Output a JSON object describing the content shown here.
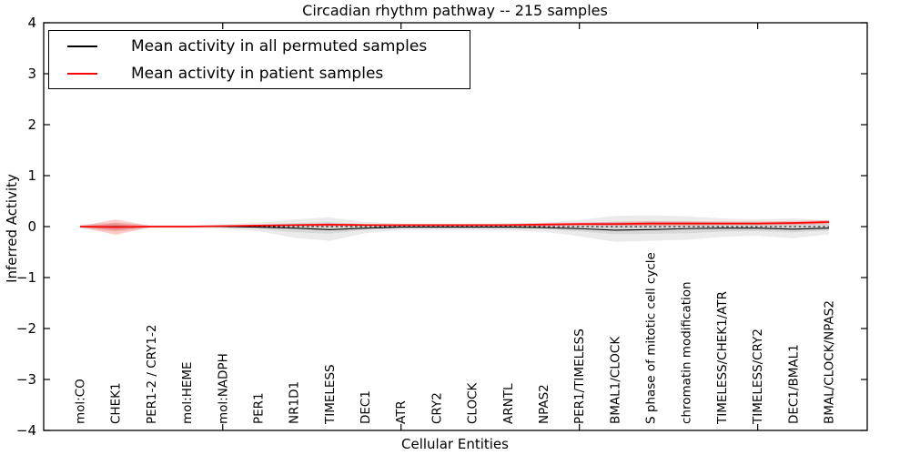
{
  "title": "Circadian rhythm pathway -- 215 samples",
  "axes": {
    "xlabel": "Cellular Entities",
    "ylabel": "Inferred Activity"
  },
  "legend": {
    "items": [
      {
        "label": "Mean activity in all permuted samples",
        "color": "#000000"
      },
      {
        "label": "Mean activity in patient samples",
        "color": "#ff0000"
      }
    ],
    "position": "upper left"
  },
  "chart_data": {
    "type": "line",
    "title": "Circadian rhythm pathway -- 215 samples",
    "xlabel": "Cellular Entities",
    "ylabel": "Inferred Activity",
    "ylim": [
      -4,
      4
    ],
    "yticks": [
      -4,
      -3,
      -2,
      -1,
      0,
      1,
      2,
      3,
      4
    ],
    "xtick_marks_at_indices": [
      4,
      9,
      14,
      19
    ],
    "grid": false,
    "legend_position": "upper left",
    "categories": [
      "mol:CO",
      "CHEK1",
      "PER1-2 / CRY1-2",
      "mol:HEME",
      "mol:NADPH",
      "PER1",
      "NR1D1",
      "TIMELESS",
      "DEC1",
      "ATR",
      "CRY2",
      "CLOCK",
      "ARNTL",
      "NPAS2",
      "PER1/TIMELESS",
      "BMAL1/CLOCK",
      "S phase of mitotic cell cycle",
      "chromatin modification",
      "TIMELESS/CHEK1/ATR",
      "TIMELESS/CRY2",
      "DEC1/BMAL1",
      "BMAL/CLOCK/NPAS2"
    ],
    "series": [
      {
        "name": "Mean activity in all permuted samples",
        "color": "#000000",
        "style": "solid",
        "values": [
          0,
          0,
          0,
          0,
          0,
          -0.01,
          -0.03,
          -0.06,
          -0.03,
          -0.01,
          -0.01,
          -0.01,
          -0.01,
          -0.02,
          -0.04,
          -0.07,
          -0.06,
          -0.04,
          -0.03,
          -0.03,
          -0.05,
          -0.03
        ]
      },
      {
        "name": "Mean activity in patient samples",
        "color": "#ff0000",
        "style": "solid",
        "values": [
          0,
          -0.01,
          0,
          0,
          0.01,
          0.02,
          0.03,
          0.04,
          0.03,
          0.03,
          0.03,
          0.03,
          0.03,
          0.04,
          0.05,
          0.05,
          0.06,
          0.06,
          0.06,
          0.06,
          0.07,
          0.09
        ]
      },
      {
        "name": "zero-reference",
        "color": "#000000",
        "style": "dotted",
        "values": [
          0,
          0,
          0,
          0,
          0,
          0,
          0,
          0,
          0,
          0,
          0,
          0,
          0,
          0,
          0,
          0,
          0,
          0,
          0,
          0,
          0,
          0
        ]
      }
    ],
    "bands": [
      {
        "name": "permuted-band-outer",
        "color": "rgba(0,0,0,0.08)",
        "upper": [
          0.04,
          0.08,
          0.03,
          0.03,
          0.04,
          0.08,
          0.14,
          0.18,
          0.09,
          0.06,
          0.06,
          0.06,
          0.07,
          0.08,
          0.13,
          0.21,
          0.22,
          0.2,
          0.16,
          0.14,
          0.16,
          0.12
        ],
        "lower": [
          -0.04,
          -0.1,
          -0.03,
          -0.03,
          -0.04,
          -0.09,
          -0.22,
          -0.28,
          -0.13,
          -0.07,
          -0.07,
          -0.07,
          -0.08,
          -0.1,
          -0.19,
          -0.3,
          -0.28,
          -0.26,
          -0.2,
          -0.18,
          -0.23,
          -0.15
        ]
      },
      {
        "name": "permuted-band-inner",
        "color": "rgba(0,0,0,0.08)",
        "upper": [
          0.02,
          0.04,
          0.015,
          0.015,
          0.02,
          0.04,
          0.07,
          0.09,
          0.045,
          0.03,
          0.03,
          0.03,
          0.035,
          0.04,
          0.065,
          0.1,
          0.11,
          0.1,
          0.08,
          0.07,
          0.08,
          0.06
        ],
        "lower": [
          -0.02,
          -0.05,
          -0.015,
          -0.015,
          -0.02,
          -0.045,
          -0.11,
          -0.14,
          -0.065,
          -0.035,
          -0.035,
          -0.035,
          -0.04,
          -0.05,
          -0.095,
          -0.15,
          -0.14,
          -0.13,
          -0.1,
          -0.09,
          -0.115,
          -0.075
        ]
      },
      {
        "name": "patient-band-outer",
        "color": "rgba(255,0,0,0.20)",
        "upper": [
          0.01,
          0.14,
          0.01,
          0.01,
          0.02,
          0.03,
          0.05,
          0.06,
          0.05,
          0.04,
          0.04,
          0.05,
          0.05,
          0.07,
          0.08,
          0.09,
          0.1,
          0.1,
          0.1,
          0.1,
          0.11,
          0.13
        ],
        "lower": [
          -0.01,
          -0.16,
          -0.01,
          -0.01,
          0,
          0,
          0.01,
          0.01,
          0.01,
          0.01,
          0.01,
          0.01,
          0.01,
          0.01,
          0.02,
          0.02,
          0.02,
          0.02,
          0.03,
          0.03,
          0.03,
          0.05
        ]
      },
      {
        "name": "patient-band-inner",
        "color": "rgba(255,0,0,0.20)",
        "upper": [
          0,
          0.07,
          0,
          0,
          0.01,
          0.015,
          0.04,
          0.05,
          0.04,
          0.03,
          0.03,
          0.04,
          0.04,
          0.05,
          0.06,
          0.07,
          0.08,
          0.08,
          0.08,
          0.08,
          0.09,
          0.11
        ],
        "lower": [
          0,
          -0.08,
          0,
          0,
          0,
          0.005,
          0.02,
          0.02,
          0.02,
          0.02,
          0.02,
          0.02,
          0.02,
          0.02,
          0.03,
          0.03,
          0.03,
          0.04,
          0.04,
          0.04,
          0.05,
          0.07
        ]
      }
    ]
  }
}
